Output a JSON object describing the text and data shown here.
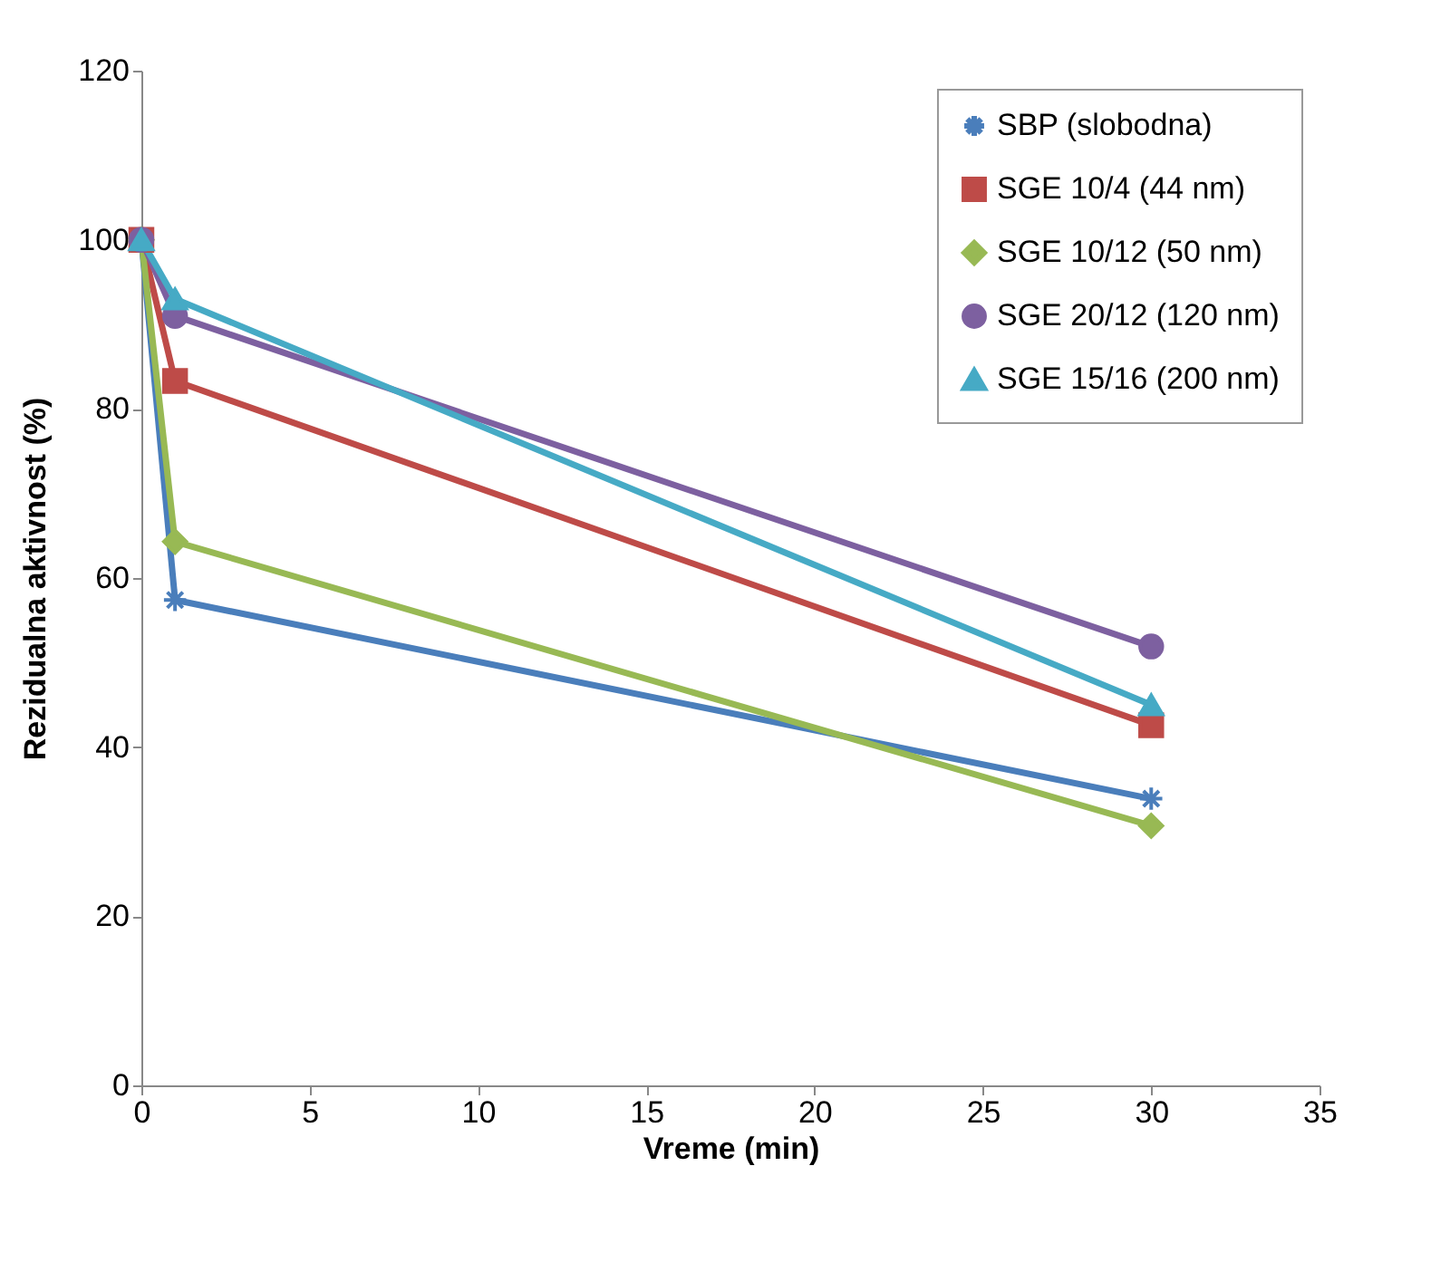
{
  "chart_data": {
    "type": "line",
    "xlabel": "Vreme (min)",
    "ylabel": "Rezidualna aktivnost (%)",
    "x": [
      0,
      1,
      30
    ],
    "xlim": [
      0,
      35
    ],
    "xticks": [
      0,
      5,
      10,
      15,
      20,
      25,
      30,
      35
    ],
    "ylim": [
      0,
      120
    ],
    "yticks": [
      0,
      20,
      40,
      60,
      80,
      100,
      120
    ],
    "grid": false,
    "legend": "top right",
    "line_style": "solid",
    "series": [
      {
        "name": "SBP (slobodna)",
        "color": "#4a7ebb",
        "marker": "cross",
        "values": [
          100,
          57.4,
          33.9
        ]
      },
      {
        "name": "SGE 10/4 (44 nm)",
        "color": "#be4b48",
        "marker": "square",
        "values": [
          100,
          83.3,
          42.6
        ]
      },
      {
        "name": "SGE 10/12 (50 nm)",
        "color": "#98b954",
        "marker": "diamond",
        "values": [
          100,
          64.3,
          30.7
        ]
      },
      {
        "name": "SGE 20/12 (120 nm)",
        "color": "#7d60a0",
        "marker": "circle",
        "values": [
          100,
          91,
          51.9
        ]
      },
      {
        "name": "SGE 15/16 (200 nm)",
        "color": "#46aac5",
        "marker": "triangle",
        "values": [
          100,
          93,
          45
        ]
      }
    ]
  }
}
